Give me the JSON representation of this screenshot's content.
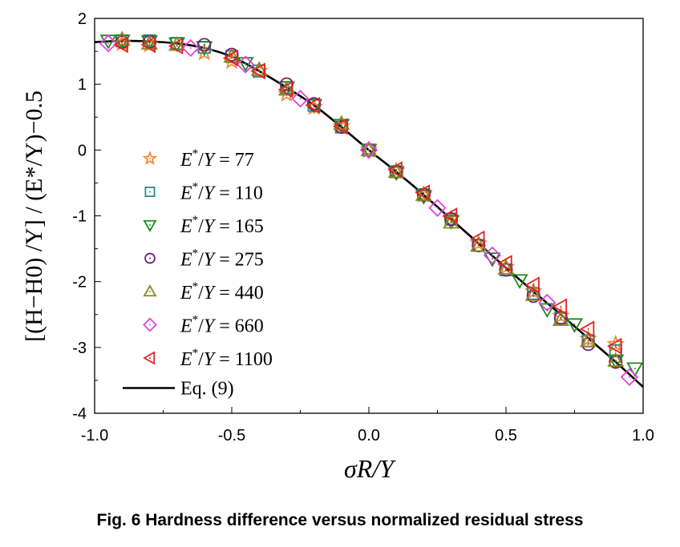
{
  "chart_data": {
    "type": "scatter",
    "title": "",
    "xlabel": "σR/Y",
    "ylabel": "[(H−H0) /Y] / (E*/Y)−0.5",
    "xlim": [
      -1.0,
      1.0
    ],
    "ylim": [
      -4,
      2
    ],
    "xticks": [
      "-1.0",
      "-0.5",
      "0.0",
      "0.5",
      "1.0"
    ],
    "xtick_values": [
      -1.0,
      -0.5,
      0.0,
      0.5,
      1.0
    ],
    "yticks": [
      "2",
      "1",
      "0",
      "-1",
      "-2",
      "-3",
      "-4"
    ],
    "ytick_values": [
      2,
      1,
      0,
      -1,
      -2,
      -3,
      -4
    ],
    "legend_position": "left",
    "series": [
      {
        "name": "E*/Y = 77",
        "label_prefix": "E",
        "label_value": "= 77",
        "marker": "star",
        "color": "#f0893a",
        "x": [
          -0.9,
          -0.8,
          -0.6,
          -0.5,
          -0.4,
          -0.3,
          -0.2,
          -0.1,
          0,
          0.1,
          0.2,
          0.3,
          0.4,
          0.5,
          0.6,
          0.7,
          0.8,
          0.9
        ],
        "y": [
          1.62,
          1.6,
          1.48,
          1.35,
          1.2,
          0.85,
          0.65,
          0.36,
          0,
          -0.32,
          -0.68,
          -1.05,
          -1.42,
          -1.78,
          -2.15,
          -2.52,
          -2.87,
          -2.95
        ]
      },
      {
        "name": "E*/Y = 110",
        "label_prefix": "E",
        "label_value": "= 110",
        "marker": "square",
        "color": "#2a8a8c",
        "x": [
          -0.9,
          -0.8,
          -0.7,
          -0.6,
          -0.5,
          -0.4,
          -0.3,
          -0.2,
          -0.1,
          0,
          0.1,
          0.2,
          0.3,
          0.4,
          0.5,
          0.6,
          0.7,
          0.8,
          0.9
        ],
        "y": [
          1.66,
          1.66,
          1.62,
          1.56,
          1.42,
          1.2,
          0.95,
          0.68,
          0.35,
          0,
          -0.33,
          -0.68,
          -1.05,
          -1.45,
          -1.82,
          -2.18,
          -2.55,
          -2.9,
          -3.05
        ]
      },
      {
        "name": "E*/Y = 165",
        "label_prefix": "E",
        "label_value": "= 165",
        "marker": "triangle-down",
        "color": "#1e8a1e",
        "x": [
          -0.95,
          -0.9,
          -0.8,
          -0.7,
          -0.6,
          -0.45,
          -0.3,
          -0.2,
          -0.1,
          0,
          0.1,
          0.2,
          0.3,
          0.45,
          0.55,
          0.65,
          0.75,
          0.9,
          0.97
        ],
        "y": [
          1.66,
          1.66,
          1.65,
          1.62,
          1.56,
          1.32,
          0.95,
          0.68,
          0.38,
          0,
          -0.34,
          -0.7,
          -1.08,
          -1.65,
          -1.98,
          -2.42,
          -2.65,
          -3.2,
          -3.32
        ]
      },
      {
        "name": "E*/Y = 275",
        "label_prefix": "E",
        "label_value": "= 275",
        "marker": "circle",
        "color": "#7a1c7a",
        "x": [
          -0.9,
          -0.8,
          -0.6,
          -0.5,
          -0.3,
          -0.2,
          -0.1,
          0,
          0.1,
          0.2,
          0.3,
          0.4,
          0.5,
          0.6,
          0.7,
          0.8,
          0.9
        ],
        "y": [
          1.64,
          1.64,
          1.6,
          1.45,
          1.0,
          0.7,
          0.35,
          0,
          -0.33,
          -0.68,
          -1.05,
          -1.45,
          -1.82,
          -2.22,
          -2.55,
          -2.95,
          -3.22
        ]
      },
      {
        "name": "E*/Y = 440",
        "label_prefix": "E",
        "label_value": "= 440",
        "marker": "triangle-up",
        "color": "#8a8a1e",
        "x": [
          -0.9,
          -0.8,
          -0.7,
          -0.5,
          -0.4,
          -0.3,
          -0.1,
          0,
          0.1,
          0.2,
          0.3,
          0.4,
          0.5,
          0.6,
          0.7,
          0.8,
          0.9
        ],
        "y": [
          1.68,
          1.62,
          1.6,
          1.42,
          1.22,
          0.92,
          0.4,
          0,
          -0.33,
          -0.68,
          -1.1,
          -1.45,
          -1.8,
          -2.2,
          -2.58,
          -2.9,
          -3.2
        ]
      },
      {
        "name": "E*/Y = 660",
        "label_prefix": "E",
        "label_value": "= 660",
        "marker": "diamond",
        "color": "#e044e0",
        "x": [
          -0.95,
          -0.65,
          -0.45,
          -0.25,
          0,
          0.25,
          0.45,
          0.65,
          0.95
        ],
        "y": [
          1.62,
          1.55,
          1.3,
          0.78,
          0,
          -0.88,
          -1.6,
          -2.32,
          -3.45
        ]
      },
      {
        "name": "E*/Y = 1100",
        "label_prefix": "E",
        "label_value": "= 1100",
        "marker": "triangle-left",
        "color": "#e02424",
        "x": [
          -0.9,
          -0.8,
          -0.7,
          -0.5,
          -0.4,
          -0.3,
          -0.2,
          -0.1,
          0.1,
          0.2,
          0.3,
          0.4,
          0.5,
          0.6,
          0.7,
          0.8,
          0.9
        ],
        "y": [
          1.6,
          1.6,
          1.58,
          1.4,
          1.2,
          0.92,
          0.68,
          0.36,
          -0.3,
          -0.65,
          -1.0,
          -1.35,
          -1.72,
          -2.05,
          -2.38,
          -2.72,
          -2.98
        ]
      }
    ],
    "fit": {
      "name": "Eq. (9)",
      "color": "#000000",
      "x": [
        -1.0,
        -0.9,
        -0.8,
        -0.7,
        -0.6,
        -0.5,
        -0.4,
        -0.3,
        -0.2,
        -0.1,
        0,
        0.1,
        0.2,
        0.3,
        0.4,
        0.5,
        0.6,
        0.7,
        0.8,
        0.9,
        1.0
      ],
      "y": [
        1.64,
        1.66,
        1.65,
        1.62,
        1.55,
        1.42,
        1.2,
        0.95,
        0.68,
        0.35,
        0,
        -0.33,
        -0.68,
        -1.05,
        -1.42,
        -1.79,
        -2.15,
        -2.5,
        -2.86,
        -3.22,
        -3.6
      ]
    }
  },
  "caption": "Fig. 6   Hardness difference versus normalized residual stress"
}
